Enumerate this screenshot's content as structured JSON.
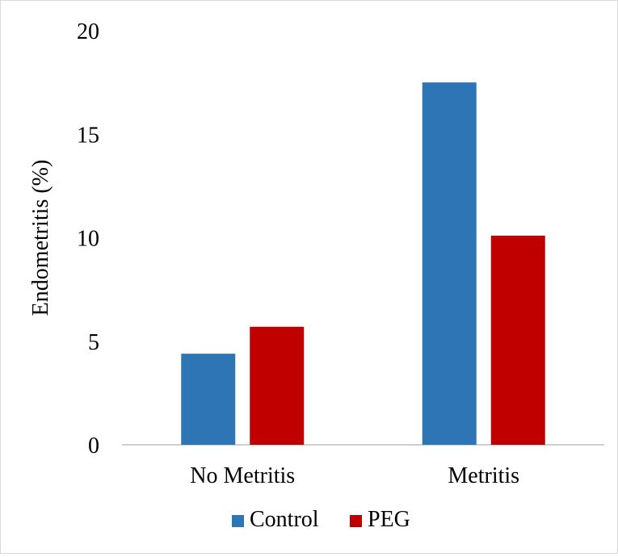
{
  "chart_data": {
    "type": "bar",
    "title": "",
    "xlabel": "",
    "ylabel": "Endometritis (%)",
    "ylim": [
      0,
      20
    ],
    "yticks": [
      0,
      5,
      10,
      15,
      20
    ],
    "categories": [
      "No Metritis",
      "Metritis"
    ],
    "series": [
      {
        "name": "Control",
        "color": "#2E75B6",
        "values": [
          4.4,
          17.5
        ]
      },
      {
        "name": "PEG",
        "color": "#C00000",
        "values": [
          5.7,
          10.1
        ]
      }
    ],
    "grid": false,
    "legend_position": "bottom"
  }
}
